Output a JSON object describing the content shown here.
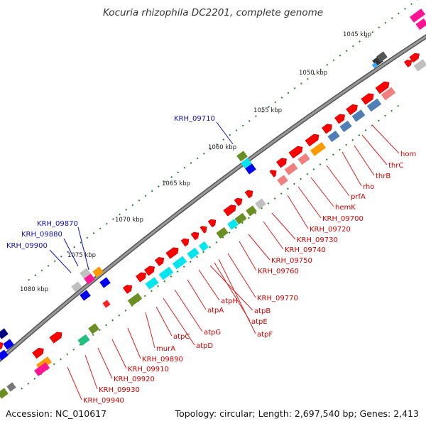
{
  "title": "Kocuria rhizophila DC2201, complete genome",
  "footer": {
    "accession": "Accession: NC_010617",
    "summary": "Topology: circular; Length: 2,697,540 bp; Genes: 2,413"
  },
  "colors": {
    "backbone": "#808080",
    "cds_plus": "#ff0000",
    "cds_minus": "#ff0000",
    "tick": "#2a8a2a",
    "label_red": "#d40000",
    "label_blue": "#1010c0",
    "atp_cyan": "#00e5ee",
    "olive": "#6b8e23",
    "steelblue": "#4f7fb5",
    "pink": "#f08080",
    "orange": "#ff9900",
    "magenta": "#ff1493",
    "silver": "#c0c0c0"
  },
  "ticks": [
    {
      "label": "1045 kbp"
    },
    {
      "label": "1050 kbp"
    },
    {
      "label": "1055 kbp"
    },
    {
      "label": "1060 kbp"
    },
    {
      "label": "1065 kbp"
    },
    {
      "label": "1070 kbp"
    },
    {
      "label": "1075 kbp"
    },
    {
      "label": "1080 kbp"
    }
  ],
  "gene_labels_red": [
    "hom",
    "thrC",
    "thrB",
    "rho",
    "prfA",
    "hemK",
    "KRH_09700",
    "KRH_09720",
    "KRH_09730",
    "KRH_09740",
    "KRH_09750",
    "KRH_09760",
    "KRH_09770",
    "atpF",
    "atpE",
    "atpB",
    "atpH",
    "atpA",
    "atpG",
    "atpD",
    "atpC",
    "murA",
    "KRH_09890",
    "KRH_09910",
    "KRH_09920",
    "KRH_09930",
    "KRH_09940"
  ],
  "gene_labels_blue": [
    "KRH_09710",
    "KRH_09870",
    "KRH_09880",
    "KRH_09900"
  ]
}
